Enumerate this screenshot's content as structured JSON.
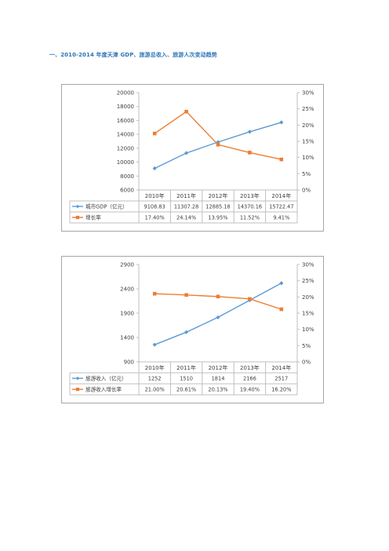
{
  "heading": "一、2010-2014 年度天津 GDP、旅游总收入、旅游人次变动趋势",
  "chart_data": [
    {
      "type": "line",
      "categories": [
        "2010年",
        "2011年",
        "2012年",
        "2013年",
        "2014年"
      ],
      "y_left": {
        "min": 6000,
        "max": 20000,
        "ticks": [
          6000,
          8000,
          10000,
          12000,
          14000,
          16000,
          18000,
          20000
        ],
        "format": "number"
      },
      "y_right": {
        "min": 0,
        "max": 30,
        "ticks": [
          0,
          5,
          10,
          15,
          20,
          25,
          30
        ],
        "format": "percent"
      },
      "grid": false,
      "legend": "data-table",
      "series": [
        {
          "name": "城市GDP（亿元）",
          "axis": "left",
          "marker": "diamond",
          "color": "#5b9bd5",
          "values": [
            9108.83,
            11307.28,
            12885.18,
            14370.16,
            15722.47
          ],
          "labels": [
            "9108.83",
            "11307.28",
            "12885.18",
            "14370.16",
            "15722.47"
          ]
        },
        {
          "name": "增长率",
          "axis": "right",
          "marker": "square",
          "color": "#ed7d31",
          "values": [
            17.4,
            24.14,
            13.95,
            11.52,
            9.41
          ],
          "labels": [
            "17.40%",
            "24.14%",
            "13.95%",
            "11.52%",
            "9.41%"
          ]
        }
      ]
    },
    {
      "type": "line",
      "categories": [
        "2010年",
        "2011年",
        "2012年",
        "2013年",
        "2014年"
      ],
      "y_left": {
        "min": 900,
        "max": 2900,
        "ticks": [
          900,
          1400,
          1900,
          2400,
          2900
        ],
        "format": "number"
      },
      "y_right": {
        "min": 0,
        "max": 30,
        "ticks": [
          0,
          5,
          10,
          15,
          20,
          25,
          30
        ],
        "format": "percent"
      },
      "grid": false,
      "legend": "data-table",
      "series": [
        {
          "name": "旅游收入（亿元）",
          "axis": "left",
          "marker": "diamond",
          "color": "#5b9bd5",
          "values": [
            1252,
            1510,
            1814,
            2166,
            2517
          ],
          "labels": [
            "1252",
            "1510",
            "1814",
            "2166",
            "2517"
          ]
        },
        {
          "name": "旅游收入增长率",
          "axis": "right",
          "marker": "square",
          "color": "#ed7d31",
          "values": [
            21.0,
            20.61,
            20.13,
            19.4,
            16.2
          ],
          "labels": [
            "21.00%",
            "20.61%",
            "20.13%",
            "19.40%",
            "16.20%"
          ]
        }
      ]
    }
  ]
}
